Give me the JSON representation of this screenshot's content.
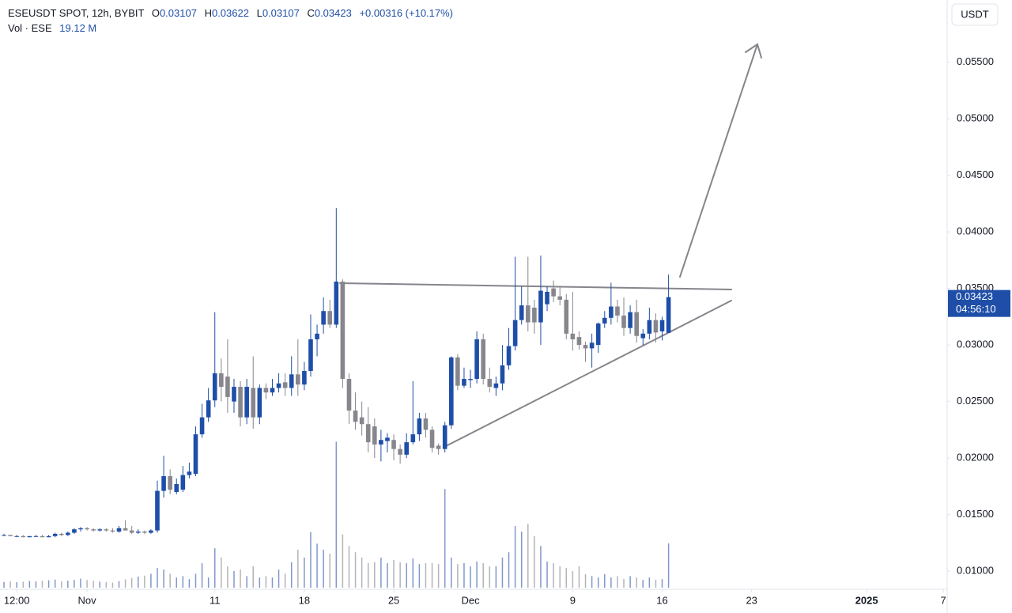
{
  "chart_data": {
    "type": "candlestick",
    "title": "ESEUSDT SPOT, 12h, BYBIT",
    "ohlc_labels": [
      "O",
      "H",
      "L",
      "C"
    ],
    "change": "+0.00316 (+10.17%)",
    "currency": "USDT",
    "countdown": "04:56:10",
    "up_color": "#1e4ea8",
    "down_color": "#86868c",
    "grid": false,
    "open": [
      0.0132,
      0.0132,
      0.0131,
      0.0131,
      0.013,
      0.0131,
      0.0131,
      0.013,
      0.0131,
      0.0133,
      0.0132,
      0.0134,
      0.0137,
      0.0138,
      0.0137,
      0.0136,
      0.0137,
      0.0136,
      0.0135,
      0.0138,
      0.0136,
      0.0134,
      0.0135,
      0.0134,
      0.0136,
      0.0171,
      0.0184,
      0.017,
      0.0172,
      0.0185,
      0.0186,
      0.0221,
      0.0236,
      0.0251,
      0.0275,
      0.0272,
      0.025,
      0.0263,
      0.0236,
      0.0262,
      0.0236,
      0.0262,
      0.0258,
      0.0262,
      0.0267,
      0.0262,
      0.0274,
      0.0265,
      0.0277,
      0.0305,
      0.0318,
      0.033,
      0.0318,
      0.0356,
      0.027,
      0.0242,
      0.0236,
      0.023,
      0.0228,
      0.0212,
      0.0215,
      0.0216,
      0.0208,
      0.0203,
      0.0214,
      0.0221,
      0.0235,
      0.0225,
      0.0211,
      0.0208,
      0.0229,
      0.0289,
      0.0264,
      0.0269,
      0.027,
      0.0305,
      0.027,
      0.0262,
      0.0266,
      0.0282,
      0.0299,
      0.0322,
      0.0335,
      0.0333,
      0.032,
      0.0336,
      0.035,
      0.0343,
      0.034,
      0.031,
      0.0307,
      0.03,
      0.0297,
      0.03,
      0.0319,
      0.0324,
      0.0334,
      0.0326,
      0.0315,
      0.0329,
      0.0306,
      0.031,
      0.0322,
      0.0312,
      0.03107
    ],
    "high": [
      0.0133,
      0.0132,
      0.0132,
      0.0132,
      0.0131,
      0.0132,
      0.0132,
      0.0132,
      0.0134,
      0.0134,
      0.0135,
      0.0138,
      0.0139,
      0.0139,
      0.0138,
      0.0138,
      0.0138,
      0.0138,
      0.014,
      0.0145,
      0.014,
      0.0137,
      0.0136,
      0.0137,
      0.018,
      0.0202,
      0.019,
      0.0182,
      0.0193,
      0.0196,
      0.0228,
      0.0248,
      0.0262,
      0.0329,
      0.0288,
      0.0305,
      0.027,
      0.0268,
      0.027,
      0.029,
      0.0265,
      0.0266,
      0.027,
      0.0275,
      0.0275,
      0.029,
      0.0305,
      0.0285,
      0.0327,
      0.0318,
      0.0342,
      0.034,
      0.0421,
      0.0358,
      0.0275,
      0.0258,
      0.025,
      0.0245,
      0.0235,
      0.0225,
      0.0222,
      0.0221,
      0.0212,
      0.0222,
      0.0268,
      0.024,
      0.024,
      0.0228,
      0.0213,
      0.0232,
      0.029,
      0.0292,
      0.028,
      0.0278,
      0.0312,
      0.031,
      0.028,
      0.0272,
      0.03,
      0.0315,
      0.0378,
      0.0352,
      0.0378,
      0.034,
      0.0379,
      0.0352,
      0.0357,
      0.0352,
      0.0345,
      0.0347,
      0.0312,
      0.0303,
      0.031,
      0.032,
      0.033,
      0.0355,
      0.034,
      0.0342,
      0.0335,
      0.034,
      0.0314,
      0.0333,
      0.0328,
      0.0325,
      0.03622
    ],
    "low": [
      0.0131,
      0.0131,
      0.013,
      0.013,
      0.013,
      0.013,
      0.013,
      0.013,
      0.013,
      0.0131,
      0.0131,
      0.0133,
      0.0135,
      0.0136,
      0.0135,
      0.0135,
      0.0135,
      0.0134,
      0.0134,
      0.0136,
      0.0133,
      0.0133,
      0.0133,
      0.0133,
      0.0134,
      0.0165,
      0.0168,
      0.0168,
      0.017,
      0.0182,
      0.0184,
      0.0218,
      0.0232,
      0.0245,
      0.025,
      0.024,
      0.024,
      0.0228,
      0.023,
      0.0226,
      0.023,
      0.0252,
      0.0255,
      0.0258,
      0.0255,
      0.0255,
      0.0255,
      0.026,
      0.0272,
      0.029,
      0.031,
      0.0315,
      0.0315,
      0.0262,
      0.023,
      0.0225,
      0.022,
      0.0205,
      0.02,
      0.0197,
      0.0205,
      0.0198,
      0.0195,
      0.02,
      0.0212,
      0.0215,
      0.0218,
      0.0205,
      0.0203,
      0.0205,
      0.0226,
      0.026,
      0.0262,
      0.0262,
      0.0266,
      0.0265,
      0.0258,
      0.0255,
      0.026,
      0.0278,
      0.0295,
      0.0318,
      0.0312,
      0.031,
      0.03,
      0.033,
      0.0338,
      0.0335,
      0.0305,
      0.0295,
      0.0296,
      0.0285,
      0.028,
      0.0293,
      0.0315,
      0.0318,
      0.032,
      0.0308,
      0.031,
      0.0302,
      0.03,
      0.0305,
      0.0302,
      0.0304,
      0.03107
    ],
    "close": [
      0.0132,
      0.0131,
      0.0131,
      0.013,
      0.0131,
      0.0131,
      0.013,
      0.0131,
      0.0133,
      0.0132,
      0.0134,
      0.0137,
      0.0138,
      0.0137,
      0.0136,
      0.0137,
      0.0136,
      0.0135,
      0.0138,
      0.0136,
      0.0134,
      0.0135,
      0.0134,
      0.0136,
      0.0171,
      0.0184,
      0.0172,
      0.0177,
      0.0185,
      0.0188,
      0.0221,
      0.0236,
      0.0251,
      0.0275,
      0.0263,
      0.0254,
      0.0263,
      0.0236,
      0.0263,
      0.0236,
      0.0262,
      0.0258,
      0.0262,
      0.0266,
      0.0262,
      0.0274,
      0.0265,
      0.0277,
      0.0305,
      0.031,
      0.033,
      0.0318,
      0.0356,
      0.027,
      0.0242,
      0.0232,
      0.023,
      0.0214,
      0.0212,
      0.0216,
      0.0218,
      0.0208,
      0.0203,
      0.0214,
      0.0221,
      0.0235,
      0.0225,
      0.0209,
      0.0208,
      0.0229,
      0.0289,
      0.0264,
      0.027,
      0.027,
      0.0305,
      0.027,
      0.0263,
      0.0266,
      0.0282,
      0.0299,
      0.0322,
      0.0335,
      0.032,
      0.032,
      0.0348,
      0.0347,
      0.0343,
      0.034,
      0.031,
      0.0305,
      0.03,
      0.0297,
      0.0302,
      0.0319,
      0.0324,
      0.0334,
      0.0326,
      0.0315,
      0.0329,
      0.0308,
      0.031,
      0.0322,
      0.0311,
      0.0322,
      0.03423
    ],
    "volume": {
      "label": "Vol · ESE",
      "value_label": "19.12 M",
      "up_color": "#8097cc",
      "down_color": "#b4b4b8",
      "values": [
        2.5,
        2.7,
        2.4,
        2.6,
        2.9,
        2.7,
        3.0,
        3.2,
        3.5,
        2.8,
        3.0,
        3.4,
        3.9,
        3.3,
        2.9,
        2.6,
        2.4,
        2.2,
        2.8,
        3.6,
        4.2,
        4.8,
        5.2,
        6.0,
        8.5,
        7.8,
        6,
        4.4,
        5,
        3.7,
        6,
        10.6,
        4.4,
        17,
        13,
        9.2,
        7.2,
        7.8,
        5,
        9.2,
        4.4,
        5,
        4.4,
        7.8,
        6,
        11,
        16.4,
        13,
        24,
        19,
        16.4,
        14.7,
        63,
        23,
        18,
        15.3,
        13,
        10.6,
        11,
        13,
        10.6,
        12,
        11,
        10.6,
        12.6,
        10.2,
        10.6,
        10.6,
        10.2,
        42.6,
        13,
        10.2,
        10.6,
        9.2,
        11.3,
        10.6,
        9.2,
        9.2,
        13,
        15.3,
        26.6,
        24.2,
        27.6,
        22.2,
        18,
        11.3,
        10.6,
        9.2,
        8.5,
        7.2,
        9.2,
        5.8,
        5,
        4.4,
        5.8,
        4.4,
        5,
        3.7,
        5,
        4.4,
        3.4,
        4.4,
        3.4,
        3.7,
        19.12
      ]
    },
    "xlim": [
      -0.62,
      147.6
    ],
    "xticks": [
      {
        "value": 2,
        "label": "12:00"
      },
      {
        "value": 13,
        "label": "Nov"
      },
      {
        "value": 33,
        "label": "11"
      },
      {
        "value": 47,
        "label": "18"
      },
      {
        "value": 61,
        "label": "25"
      },
      {
        "value": 73,
        "label": "Dec"
      },
      {
        "value": 89,
        "label": "9"
      },
      {
        "value": 103,
        "label": "16"
      },
      {
        "value": 117,
        "label": "23"
      },
      {
        "value": 135,
        "label": "2025"
      },
      {
        "value": 147,
        "label": "7"
      }
    ],
    "ylim": [
      0.0084,
      0.0605
    ],
    "yticks": [
      {
        "value": 0.01,
        "label": "0.01000"
      },
      {
        "value": 0.015,
        "label": "0.01500"
      },
      {
        "value": 0.02,
        "label": "0.02000"
      },
      {
        "value": 0.025,
        "label": "0.02500"
      },
      {
        "value": 0.03,
        "label": "0.03000"
      },
      {
        "value": 0.035,
        "label": "0.03500"
      },
      {
        "value": 0.04,
        "label": "0.04000"
      },
      {
        "value": 0.045,
        "label": "0.04500"
      },
      {
        "value": 0.05,
        "label": "0.05000"
      },
      {
        "value": 0.055,
        "label": "0.05500"
      }
    ]
  }
}
